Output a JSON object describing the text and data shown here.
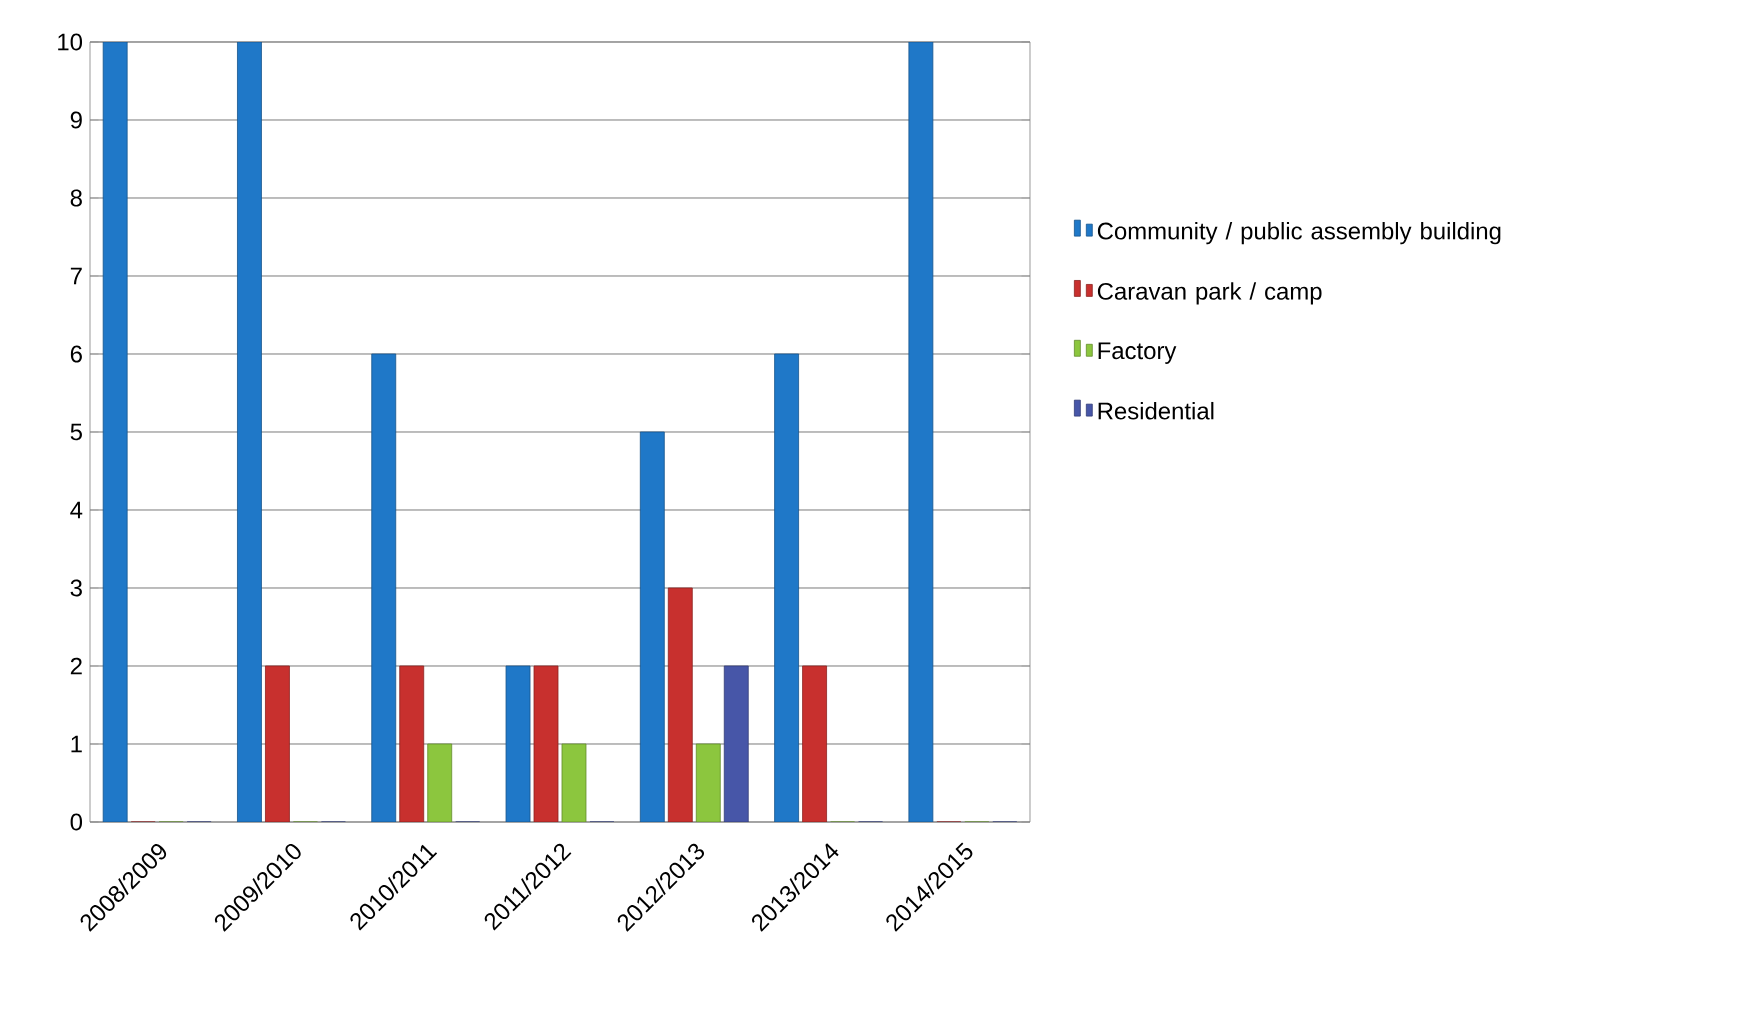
{
  "chart_data": {
    "type": "bar",
    "categories": [
      "2008/2009",
      "2009/2010",
      "2010/2011",
      "2011/2012",
      "2012/2013",
      "2013/2014",
      "2014/2015"
    ],
    "series": [
      {
        "name": "Community / public assembly building",
        "color": "#1f78c8",
        "values": [
          10,
          10,
          6,
          2,
          5,
          6,
          10
        ]
      },
      {
        "name": "Caravan park / camp",
        "color": "#c8302e",
        "values": [
          0,
          2,
          2,
          2,
          3,
          2,
          0
        ]
      },
      {
        "name": "Factory",
        "color": "#8cc63e",
        "values": [
          0,
          0,
          1,
          1,
          1,
          0,
          0
        ]
      },
      {
        "name": "Residential",
        "color": "#4756a8",
        "values": [
          0,
          0,
          0,
          0,
          2,
          0,
          0
        ]
      }
    ],
    "ylim": [
      0,
      10
    ],
    "yticks": [
      0,
      1,
      2,
      3,
      4,
      5,
      6,
      7,
      8,
      9,
      10
    ],
    "grid": "y",
    "legend": "right"
  }
}
